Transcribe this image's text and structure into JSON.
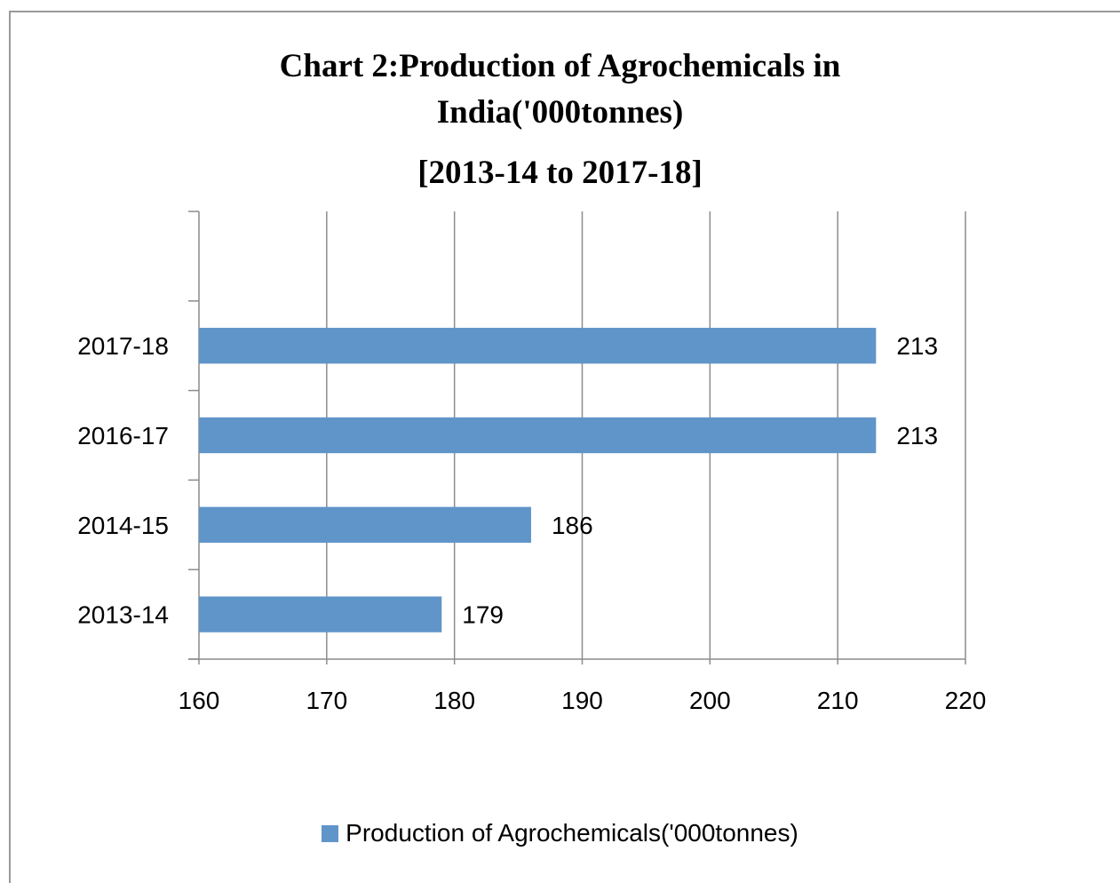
{
  "chart_data": {
    "type": "bar",
    "orientation": "horizontal",
    "title_lines": [
      "Chart 2:Production of Agrochemicals in",
      "India('000tonnes)",
      "[2013-14 to 2017-18]"
    ],
    "categories": [
      "2017-18",
      "2016-17",
      "2014-15",
      "2013-14"
    ],
    "series": [
      {
        "name": "Production of Agrochemicals('000tonnes)",
        "values": [
          213,
          213,
          186,
          179
        ],
        "color": "#6095C9"
      }
    ],
    "xlim": [
      160,
      220
    ],
    "xticks": [
      160,
      170,
      180,
      190,
      200,
      210,
      220
    ],
    "grid": true,
    "legend_position": "bottom"
  }
}
